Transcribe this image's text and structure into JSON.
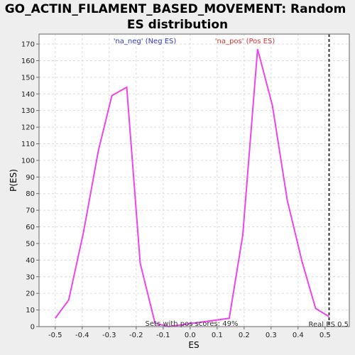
{
  "chart_data": {
    "type": "line",
    "title_lines": [
      "GO_ACTIN_FILAMENT_BASED_MOVEMENT: Random",
      "ES distribution"
    ],
    "xlabel": "ES",
    "ylabel": "P(ES)",
    "xlim": [
      -0.56,
      0.59
    ],
    "ylim": [
      0,
      176
    ],
    "xticks": [
      -0.5,
      -0.4,
      -0.3,
      -0.2,
      -0.1,
      0.0,
      0.1,
      0.2,
      0.3,
      0.4,
      0.5
    ],
    "yticks": [
      0,
      10,
      20,
      30,
      40,
      50,
      60,
      70,
      80,
      90,
      100,
      110,
      120,
      130,
      140,
      150,
      160,
      170
    ],
    "grid": true,
    "series": [
      {
        "color": "#ee44ee",
        "x": [
          -0.5,
          -0.45,
          -0.395,
          -0.34,
          -0.29,
          -0.235,
          -0.185,
          -0.13,
          -0.08,
          0.145,
          0.195,
          0.25,
          0.305,
          0.36,
          0.415,
          0.465,
          0.515
        ],
        "y": [
          5,
          16,
          57,
          106,
          139,
          144,
          38,
          2,
          0,
          5,
          55,
          167,
          133,
          76,
          39,
          11,
          6
        ]
      }
    ],
    "annotations": {
      "neg_label": "'na_neg' (Neg ES)",
      "pos_label": "'na_pos' (Pos ES)",
      "pos_scores": "Sets with pos scores: 49%",
      "real_es": "Real ES 0.5"
    },
    "real_es_value": 0.515,
    "colors": {
      "neg": "#3333cc",
      "pos": "#dd3333",
      "grid": "#dddddd",
      "frame": "#666666"
    }
  }
}
